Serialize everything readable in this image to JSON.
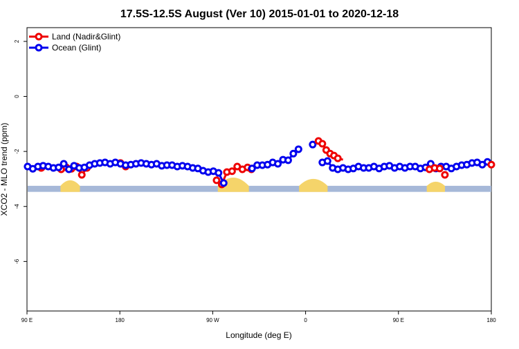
{
  "chart_data": {
    "type": "line",
    "title": "17.5S-12.5S August (Ver 10)   2015-01-01 to 2020-12-18",
    "xlabel": "Longitude (deg E)",
    "ylabel": "XCO2 - MLO trend (ppm)",
    "xlim": [
      90,
      450
    ],
    "ylim": [
      -7.8,
      2.5
    ],
    "x_ticks": [
      {
        "value": 90,
        "label": "90 E"
      },
      {
        "value": 162,
        "label": "180"
      },
      {
        "value": 234,
        "label": "90 W"
      },
      {
        "value": 306,
        "label": "0"
      },
      {
        "value": 378,
        "label": "90 E"
      },
      {
        "value": 450,
        "label": "180"
      }
    ],
    "y_ticks": [
      {
        "value": 2,
        "label": "2"
      },
      {
        "value": 0,
        "label": "0"
      },
      {
        "value": -2,
        "label": "-2"
      },
      {
        "value": -4,
        "label": "-4"
      },
      {
        "value": -6,
        "label": "-6"
      }
    ],
    "legend": {
      "position": "top-left"
    },
    "colors": {
      "land": "#ee0000",
      "ocean": "#0000ee",
      "sea_band": "#a6b8d8",
      "land_band": "#f5d46a"
    },
    "series": [
      {
        "name": "Land (Nadir&Glint)",
        "color": "#ee0000",
        "segments": [
          [
            [
              116.5,
              -2.65
            ],
            [
              120.5,
              -2.58
            ],
            [
              124.5,
              -2.63
            ],
            [
              128.5,
              -2.55
            ],
            [
              132.5,
              -2.85
            ],
            [
              136.5,
              -2.6
            ]
          ],
          [
            [
              162.5,
              -2.42
            ],
            [
              166.5,
              -2.55
            ]
          ],
          [
            [
              237,
              -3.05
            ],
            [
              241,
              -3.2
            ],
            [
              245,
              -2.75
            ],
            [
              249,
              -2.72
            ],
            [
              253,
              -2.55
            ],
            [
              257,
              -2.65
            ],
            [
              261,
              -2.58
            ],
            [
              264,
              -2.65
            ]
          ],
          [
            [
              101,
              -2.6
            ]
          ],
          [
            [
              101.5,
              -2.58
            ]
          ]
        ]
      },
      {
        "name": "Ocean (Glint)",
        "color": "#0000ee",
        "segments": [
          [
            [
              90.5,
              -2.55
            ],
            [
              94.5,
              -2.63
            ],
            [
              98.5,
              -2.55
            ],
            [
              102.5,
              -2.52
            ],
            [
              106.5,
              -2.55
            ],
            [
              110.5,
              -2.6
            ],
            [
              114.5,
              -2.58
            ],
            [
              118.5,
              -2.45
            ],
            [
              122.5,
              -2.65
            ],
            [
              126.5,
              -2.52
            ],
            [
              130.5,
              -2.6
            ],
            [
              134.5,
              -2.58
            ],
            [
              138.5,
              -2.5
            ],
            [
              142.5,
              -2.45
            ],
            [
              146.5,
              -2.42
            ],
            [
              150.5,
              -2.4
            ],
            [
              154.5,
              -2.45
            ],
            [
              158.5,
              -2.4
            ],
            [
              162.5,
              -2.45
            ],
            [
              166.5,
              -2.5
            ],
            [
              170.5,
              -2.48
            ],
            [
              174.5,
              -2.45
            ],
            [
              178.5,
              -2.42
            ],
            [
              182.5,
              -2.45
            ],
            [
              186.5,
              -2.48
            ],
            [
              190.5,
              -2.45
            ],
            [
              194.5,
              -2.52
            ],
            [
              198.5,
              -2.5
            ],
            [
              202.5,
              -2.5
            ],
            [
              206.5,
              -2.55
            ],
            [
              210.5,
              -2.52
            ],
            [
              214.5,
              -2.55
            ],
            [
              218.5,
              -2.6
            ],
            [
              222.5,
              -2.62
            ],
            [
              226.5,
              -2.7
            ],
            [
              230.5,
              -2.75
            ],
            [
              234.5,
              -2.72
            ],
            [
              238.5,
              -2.78
            ],
            [
              242.5,
              -3.15
            ]
          ],
          [
            [
              264.5,
              -2.62
            ],
            [
              268.5,
              -2.5
            ],
            [
              272.5,
              -2.5
            ],
            [
              276.5,
              -2.48
            ],
            [
              280.5,
              -2.4
            ],
            [
              284.5,
              -2.45
            ],
            [
              288.5,
              -2.3
            ],
            [
              292.5,
              -2.32
            ],
            [
              296.5,
              -2.08
            ],
            [
              300.5,
              -1.92
            ]
          ],
          [
            [
              311.5,
              -1.75
            ]
          ],
          [
            [
              319,
              -2.4
            ],
            [
              323,
              -2.35
            ],
            [
              327,
              -2.6
            ],
            [
              331,
              -2.65
            ],
            [
              335,
              -2.6
            ],
            [
              339,
              -2.65
            ],
            [
              343,
              -2.62
            ],
            [
              347,
              -2.55
            ],
            [
              351,
              -2.6
            ],
            [
              355,
              -2.6
            ],
            [
              359,
              -2.55
            ],
            [
              363,
              -2.62
            ],
            [
              367,
              -2.55
            ],
            [
              371,
              -2.52
            ],
            [
              375,
              -2.6
            ],
            [
              379,
              -2.55
            ],
            [
              383,
              -2.6
            ],
            [
              387,
              -2.55
            ],
            [
              391,
              -2.55
            ],
            [
              395,
              -2.62
            ],
            [
              399,
              -2.58
            ],
            [
              403,
              -2.45
            ],
            [
              407,
              -2.62
            ],
            [
              411,
              -2.55
            ],
            [
              415,
              -2.55
            ],
            [
              419,
              -2.62
            ],
            [
              423,
              -2.55
            ],
            [
              427,
              -2.5
            ],
            [
              431,
              -2.48
            ],
            [
              435,
              -2.42
            ],
            [
              439,
              -2.4
            ],
            [
              443,
              -2.48
            ],
            [
              447,
              -2.38
            ]
          ]
        ]
      }
    ],
    "extra_land_points": [
      [
        316,
        -1.62
      ],
      [
        319,
        -1.72
      ],
      [
        322,
        -1.95
      ],
      [
        325,
        -2.08
      ],
      [
        328,
        -2.15
      ],
      [
        331,
        -2.25
      ],
      [
        402,
        -2.65
      ],
      [
        406,
        -2.6
      ],
      [
        410,
        -2.62
      ],
      [
        414,
        -2.85
      ],
      [
        450,
        -2.48
      ]
    ],
    "band": {
      "y_top": -3.25,
      "y_bottom": -3.47,
      "land_regions": [
        {
          "x": [
            116,
            131
          ],
          "top": -3.05
        },
        {
          "x": [
            238,
            262
          ],
          "top": -2.95
        },
        {
          "x": [
            301,
            323
          ],
          "top": -3.0
        },
        {
          "x": [
            400,
            414
          ],
          "top": -3.1
        }
      ]
    }
  }
}
